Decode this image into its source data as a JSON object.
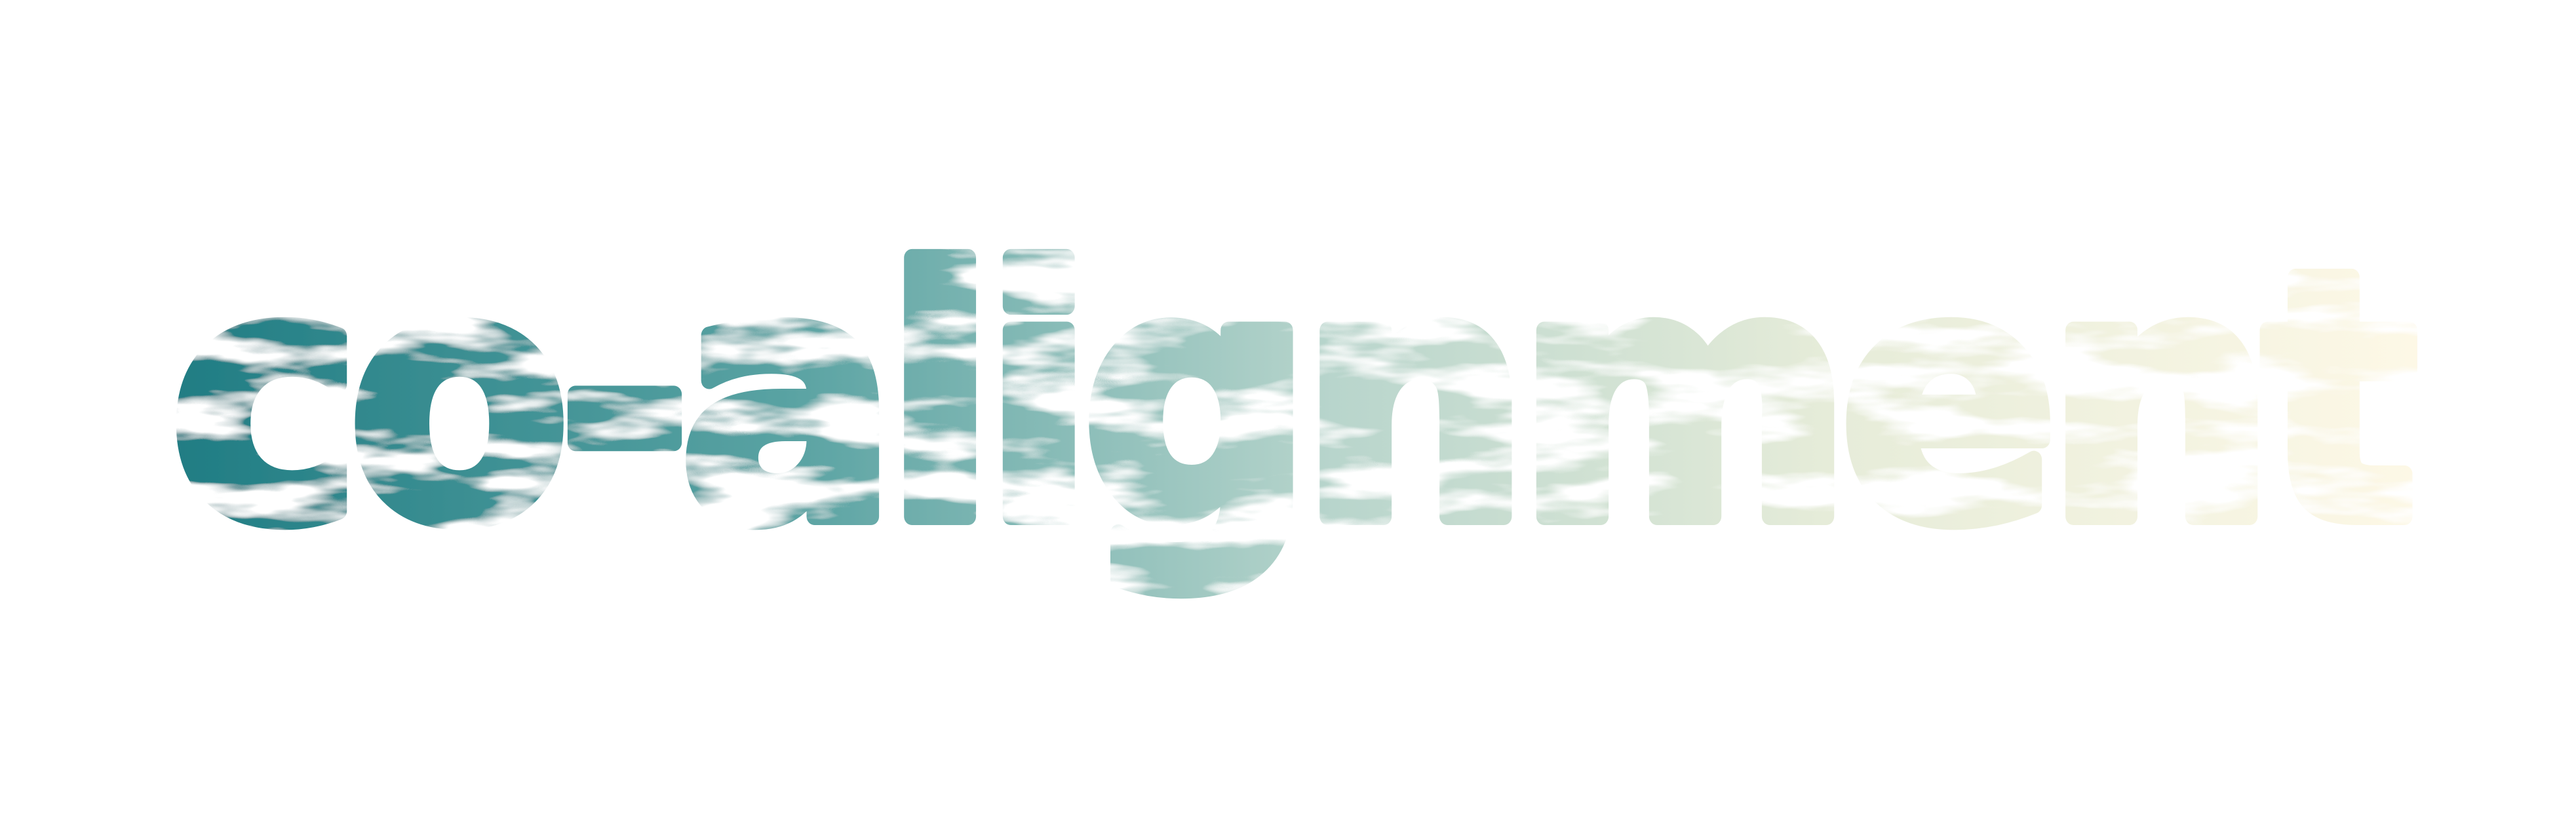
{
  "wordmark": {
    "text": "co-alignment"
  },
  "colors": {
    "background": "#ffffff",
    "gradient_start": "#1f7c83",
    "gradient_mid1": "#5aa3a3",
    "gradient_mid2": "#b8d5cc",
    "gradient_mid3": "#e6ecd9",
    "gradient_end": "#fdf8e6",
    "marble_vein": "#ffffff"
  }
}
